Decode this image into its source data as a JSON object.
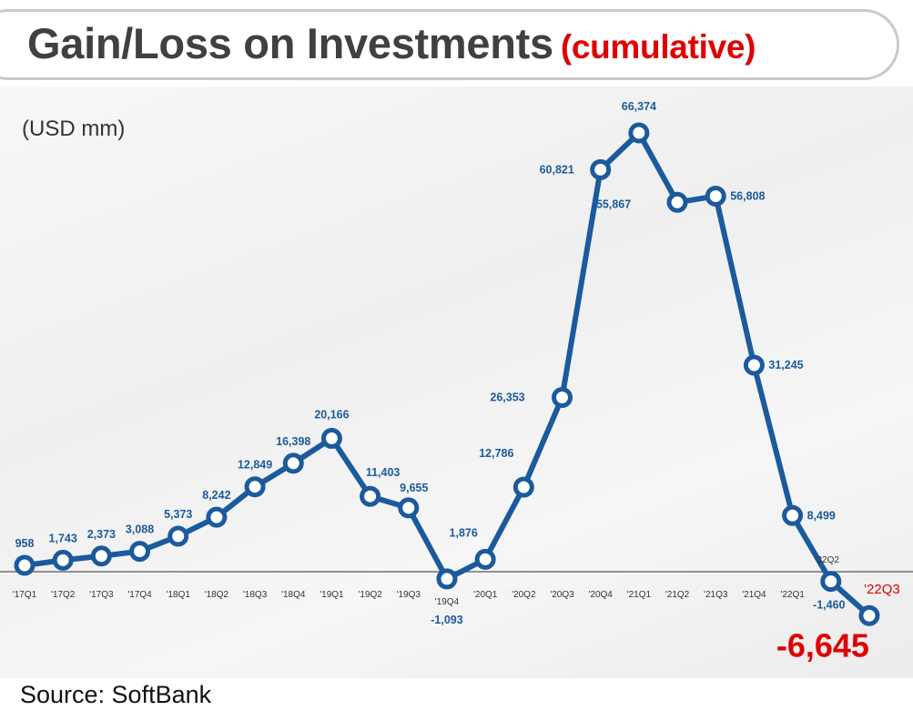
{
  "title": "Gain/Loss on Investments",
  "title_note": "(cumulative)",
  "units": "(USD mm)",
  "source": "Source: SoftBank",
  "colors": {
    "line": "#1b5a9c",
    "highlight": "#e00000",
    "title": "#404040",
    "axis": "#555555"
  },
  "chart_data": {
    "type": "line",
    "title": "Gain/Loss on Investments (cumulative)",
    "ylabel": "(USD mm)",
    "xlabel": "",
    "categories": [
      "'17Q1",
      "'17Q2",
      "'17Q3",
      "'17Q4",
      "'18Q1",
      "'18Q2",
      "'18Q3",
      "'18Q4",
      "'19Q1",
      "'19Q2",
      "'19Q3",
      "'19Q4",
      "'20Q1",
      "'20Q2",
      "'20Q3",
      "'20Q4",
      "'21Q1",
      "'21Q2",
      "'21Q3",
      "'21Q4",
      "'22Q1",
      "'22Q2",
      "'22Q3"
    ],
    "values": [
      958,
      1743,
      2373,
      3088,
      5373,
      8242,
      12849,
      16398,
      20166,
      11403,
      9655,
      -1093,
      1876,
      12786,
      26353,
      60821,
      66374,
      55867,
      56808,
      31245,
      8499,
      -1460,
      -6645
    ],
    "value_labels": [
      "958",
      "1,743",
      "2,373",
      "3,088",
      "5,373",
      "8,242",
      "12,849",
      "16,398",
      "20,166",
      "11,403",
      "9,655",
      "-1,093",
      "1,876",
      "12,786",
      "26,353",
      "60,821",
      "66,374",
      "55,867",
      "56,808",
      "31,245",
      "8,499",
      "-1,460",
      "-6,645"
    ],
    "highlight_index": 22,
    "ylim": [
      -7500,
      67000
    ],
    "grid": false,
    "legend": "none"
  }
}
